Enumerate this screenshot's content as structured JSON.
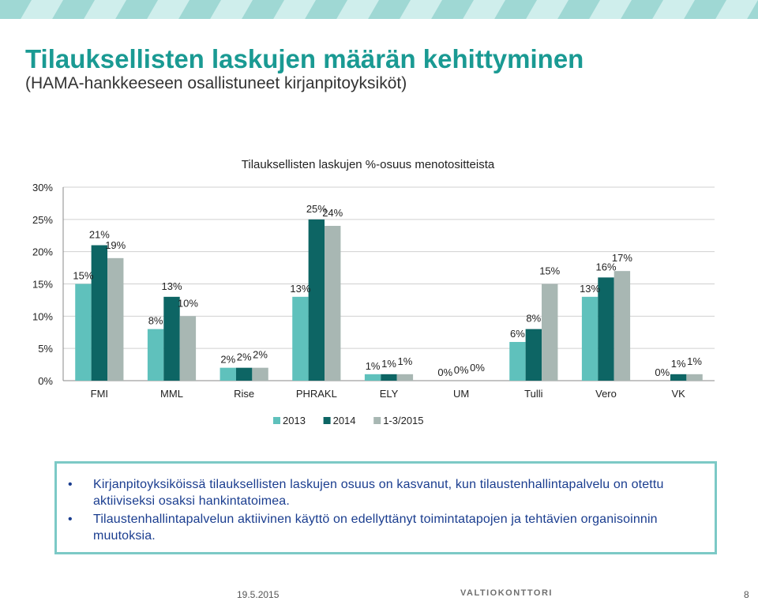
{
  "slide": {
    "title": "Tilauksellisten laskujen määrän kehittyminen",
    "subtitle": "(HAMA-hankkeeseen osallistuneet kirjanpitoyksiköt)"
  },
  "colors": {
    "accent": "#1a9a93",
    "series": [
      "#5fc1bc",
      "#0d6564",
      "#a8b7b3"
    ],
    "band": "#9fd8d4"
  },
  "chart_data": {
    "type": "bar",
    "title": "Tilauksellisten laskujen %-osuus menotositteista",
    "categories": [
      "FMI",
      "MML",
      "Rise",
      "PHRAKL",
      "ELY",
      "UM",
      "Tulli",
      "Vero",
      "VK"
    ],
    "series": [
      {
        "name": "2013",
        "values": [
          15,
          8,
          2,
          13,
          1,
          0,
          6,
          13,
          0
        ]
      },
      {
        "name": "2014",
        "values": [
          21,
          13,
          2,
          25,
          1,
          0,
          8,
          16,
          1
        ]
      },
      {
        "name": "1-3/2015",
        "values": [
          19,
          10,
          2,
          24,
          1,
          0,
          15,
          17,
          1
        ]
      }
    ],
    "ylim": [
      0,
      30
    ],
    "yticks": [
      "0%",
      "5%",
      "10%",
      "15%",
      "20%",
      "25%",
      "30%"
    ],
    "value_suffix": "%",
    "grid": true,
    "legend": "bottom"
  },
  "bullets": [
    "Kirjanpitoyksiköissä tilauksellisten laskujen osuus on kasvanut, kun tilaustenhallintapalvelu on otettu aktiiviseksi osaksi hankintatoimea.",
    "Tilaustenhallintapalvelun aktiivinen käyttö on edellyttänyt toimintatapojen ja tehtävien organisoinnin muutoksia."
  ],
  "footer": {
    "date": "19.5.2015",
    "logo": "VALTIOKONTTORI",
    "page": "8"
  }
}
